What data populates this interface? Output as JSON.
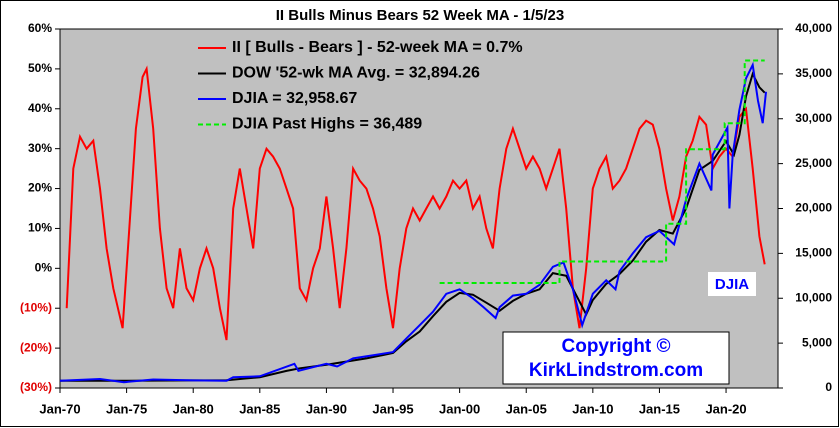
{
  "chart_data": {
    "type": "line",
    "title": "II Bulls Minus Bears 52 Week MA - 1/5/23",
    "xlim": [
      1970,
      2023.9
    ],
    "xticks": [
      {
        "value": 1970,
        "label": "Jan-70"
      },
      {
        "value": 1975,
        "label": "Jan-75"
      },
      {
        "value": 1980,
        "label": "Jan-80"
      },
      {
        "value": 1985,
        "label": "Jan-85"
      },
      {
        "value": 1990,
        "label": "Jan-90"
      },
      {
        "value": 1995,
        "label": "Jan-95"
      },
      {
        "value": 2000,
        "label": "Jan-00"
      },
      {
        "value": 2005,
        "label": "Jan-05"
      },
      {
        "value": 2010,
        "label": "Jan-10"
      },
      {
        "value": 2015,
        "label": "Jan-15"
      },
      {
        "value": 2020,
        "label": "Jan-20"
      }
    ],
    "ylim": [
      -30,
      60
    ],
    "yticks": [
      {
        "value": -30,
        "label": "(30%)"
      },
      {
        "value": -20,
        "label": "(20%)"
      },
      {
        "value": -10,
        "label": "(10%)"
      },
      {
        "value": 0,
        "label": "0%"
      },
      {
        "value": 10,
        "label": "10%"
      },
      {
        "value": 20,
        "label": "20%"
      },
      {
        "value": 30,
        "label": "30%"
      },
      {
        "value": 40,
        "label": "40%"
      },
      {
        "value": 50,
        "label": "50%"
      },
      {
        "value": 60,
        "label": "60%"
      }
    ],
    "negative_tick_color": "#e00000",
    "y2lim": [
      0,
      40000
    ],
    "y2ticks": [
      0,
      {
        "value": 5000,
        "label": "5,000"
      },
      {
        "value": 10000,
        "label": "10,000"
      },
      {
        "value": 15000,
        "label": "15,000"
      },
      {
        "value": 20000,
        "label": "20,000"
      },
      {
        "value": 25000,
        "label": "25,000"
      },
      {
        "value": 30000,
        "label": "30,000"
      },
      {
        "value": 35000,
        "label": "35,000"
      },
      {
        "value": 40000,
        "label": "40,000"
      }
    ],
    "plot_background": "#c0c0c0",
    "series": [
      {
        "name": "II [ Bulls - Bears ] -  52-week MA = 0.7%",
        "color": "#ff0000",
        "axis": "y",
        "x": [
          1970.5,
          1971,
          1971.5,
          1972,
          1972.5,
          1973,
          1973.5,
          1974,
          1974.7,
          1975.2,
          1975.7,
          1976.2,
          1976.5,
          1977,
          1977.5,
          1978,
          1978.5,
          1979,
          1979.5,
          1980,
          1980.5,
          1981,
          1981.5,
          1982,
          1982.5,
          1983,
          1983.5,
          1984,
          1984.5,
          1985,
          1985.5,
          1986,
          1986.5,
          1987,
          1987.5,
          1988,
          1988.5,
          1989,
          1989.5,
          1990,
          1990.5,
          1991,
          1991.5,
          1992,
          1992.5,
          1993,
          1993.5,
          1994,
          1994.5,
          1995,
          1995.5,
          1996,
          1996.5,
          1997,
          1997.5,
          1998,
          1998.5,
          1999,
          1999.5,
          2000,
          2000.5,
          2001,
          2001.5,
          2002,
          2002.5,
          2003,
          2003.5,
          2004,
          2004.5,
          2005,
          2005.5,
          2006,
          2006.5,
          2007,
          2007.5,
          2008,
          2008.5,
          2009,
          2009.5,
          2010,
          2010.5,
          2011,
          2011.5,
          2012,
          2012.5,
          2013,
          2013.5,
          2014,
          2014.5,
          2015,
          2015.5,
          2016,
          2016.5,
          2017,
          2017.5,
          2018,
          2018.5,
          2019,
          2019.5,
          2020,
          2020.5,
          2021,
          2021.5,
          2022,
          2022.5,
          2022.9
        ],
        "values": [
          -10,
          25,
          33,
          30,
          32,
          20,
          5,
          -5,
          -15,
          10,
          35,
          48,
          50,
          35,
          10,
          -5,
          -10,
          5,
          -5,
          -8,
          0,
          5,
          0,
          -10,
          -18,
          15,
          25,
          15,
          5,
          25,
          30,
          28,
          25,
          20,
          15,
          -5,
          -8,
          0,
          5,
          18,
          5,
          -10,
          5,
          25,
          22,
          20,
          15,
          8,
          -5,
          -15,
          0,
          10,
          15,
          12,
          15,
          18,
          15,
          18,
          22,
          20,
          22,
          15,
          18,
          10,
          5,
          20,
          30,
          35,
          30,
          25,
          28,
          25,
          20,
          25,
          30,
          15,
          -5,
          -15,
          0,
          20,
          25,
          28,
          20,
          22,
          25,
          30,
          35,
          37,
          36,
          30,
          20,
          12,
          18,
          28,
          32,
          38,
          36,
          25,
          28,
          30,
          28,
          38,
          40,
          25,
          8,
          1
        ]
      },
      {
        "name": "DOW '52-wk MA Avg. =  32,894.26",
        "color": "#000000",
        "axis": "y2",
        "x": [
          1970,
          1975,
          1980,
          1982.5,
          1985,
          1987,
          1988,
          1990,
          1993,
          1995,
          1996,
          1997,
          1998,
          1999,
          2000,
          2001,
          2002,
          2003,
          2004,
          2005,
          2006,
          2007,
          2008,
          2008.7,
          2009.5,
          2010,
          2011,
          2012,
          2013,
          2014,
          2015,
          2016,
          2017,
          2018,
          2019,
          2020,
          2020.6,
          2021,
          2021.5,
          2022,
          2022.5,
          2022.9
        ],
        "values": [
          800,
          800,
          850,
          870,
          1200,
          1900,
          2200,
          2600,
          3300,
          3900,
          5200,
          6300,
          8000,
          9600,
          10600,
          10400,
          9500,
          8600,
          9700,
          10500,
          11000,
          12800,
          12500,
          10500,
          8200,
          9800,
          11600,
          12700,
          14200,
          16300,
          17600,
          17200,
          20000,
          24300,
          25300,
          27500,
          26000,
          28200,
          32500,
          35000,
          33500,
          32900
        ]
      },
      {
        "name": "DJIA =   32,958.67",
        "color": "#0000ff",
        "axis": "y2",
        "x": [
          1970,
          1973,
          1974.8,
          1977,
          1980,
          1982.5,
          1983,
          1985,
          1987.6,
          1987.9,
          1990,
          1990.8,
          1992,
          1995,
          1996,
          1997,
          1998,
          1999,
          2000,
          2001,
          2001.8,
          2002.7,
          2003,
          2004,
          2005,
          2006,
          2007,
          2007.8,
          2008.5,
          2009.2,
          2010,
          2011,
          2011.7,
          2012,
          2013,
          2014,
          2015,
          2016.1,
          2017,
          2018,
          2018.9,
          2019,
          2020.1,
          2020.25,
          2020.5,
          2021,
          2021.5,
          2022,
          2022.4,
          2022.75,
          2023
        ],
        "values": [
          800,
          1000,
          650,
          950,
          850,
          800,
          1200,
          1300,
          2700,
          1900,
          2700,
          2400,
          3300,
          4000,
          5500,
          7000,
          8500,
          10500,
          11000,
          10000,
          9000,
          7800,
          9000,
          10300,
          10500,
          11500,
          13500,
          14000,
          11000,
          7000,
          10500,
          12000,
          11000,
          13000,
          15000,
          16800,
          17500,
          16000,
          21000,
          25000,
          22000,
          26000,
          29000,
          20000,
          26000,
          31000,
          34500,
          36000,
          32000,
          29500,
          33000
        ]
      },
      {
        "name": "DJIA Past Highs =  36,489",
        "color": "#00ee00",
        "axis": "y2",
        "x": [
          1998.5,
          2007.5,
          2007.5,
          2015.5,
          2015.5,
          2017,
          2017,
          2019.9,
          2019.9,
          2021.4,
          2021.4,
          2022.9
        ],
        "values": [
          11700,
          11700,
          14100,
          14100,
          18300,
          18300,
          26600,
          26600,
          29500,
          29500,
          36489,
          36489
        ],
        "dashed": true
      }
    ],
    "annotations": [
      "DJIA",
      "Copyright ©",
      "KirkLindstrom.com"
    ]
  }
}
